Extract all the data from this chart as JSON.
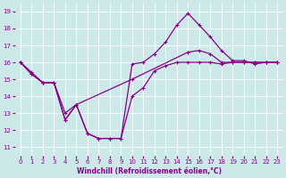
{
  "bg_color": "#cde8e8",
  "grid_color": "#b0d8d8",
  "line_color": "#880088",
  "xlabel": "Windchill (Refroidissement éolien,°C)",
  "xlim": [
    -0.5,
    23.5
  ],
  "ylim": [
    10.5,
    19.5
  ],
  "xticks": [
    0,
    1,
    2,
    3,
    4,
    5,
    6,
    7,
    8,
    9,
    10,
    11,
    12,
    13,
    14,
    15,
    16,
    17,
    18,
    19,
    20,
    21,
    22,
    23
  ],
  "yticks": [
    11,
    12,
    13,
    14,
    15,
    16,
    17,
    18,
    19
  ],
  "line1_x": [
    0,
    1,
    2,
    3,
    4,
    5,
    6,
    7,
    8,
    9,
    10,
    11,
    12,
    13,
    14,
    15,
    16,
    17,
    18,
    19,
    20,
    21,
    22,
    23
  ],
  "line1_y": [
    16.0,
    15.4,
    14.8,
    14.8,
    13.0,
    13.5,
    11.8,
    11.5,
    11.5,
    11.5,
    15.9,
    16.0,
    16.5,
    17.2,
    18.2,
    18.9,
    18.2,
    17.5,
    16.7,
    16.1,
    16.1,
    15.9,
    16.0,
    16.0
  ],
  "line2_x": [
    0,
    1,
    2,
    3,
    4,
    5,
    6,
    7,
    8,
    9,
    10,
    11,
    12,
    13,
    14,
    15,
    16,
    17,
    18,
    19,
    20,
    21,
    22,
    23
  ],
  "line2_y": [
    16.0,
    15.3,
    14.8,
    14.8,
    12.6,
    13.5,
    11.8,
    11.5,
    11.5,
    11.5,
    14.0,
    14.5,
    15.5,
    15.8,
    16.0,
    16.0,
    16.0,
    16.0,
    15.9,
    16.0,
    16.0,
    16.0,
    16.0,
    16.0
  ],
  "line3_x": [
    0,
    1,
    2,
    3,
    4,
    5,
    10,
    15,
    16,
    17,
    18,
    19,
    20,
    21,
    22,
    23
  ],
  "line3_y": [
    16.0,
    15.3,
    14.8,
    14.8,
    12.6,
    13.5,
    15.0,
    16.6,
    16.7,
    16.5,
    16.0,
    16.0,
    16.0,
    16.0,
    16.0,
    16.0
  ]
}
